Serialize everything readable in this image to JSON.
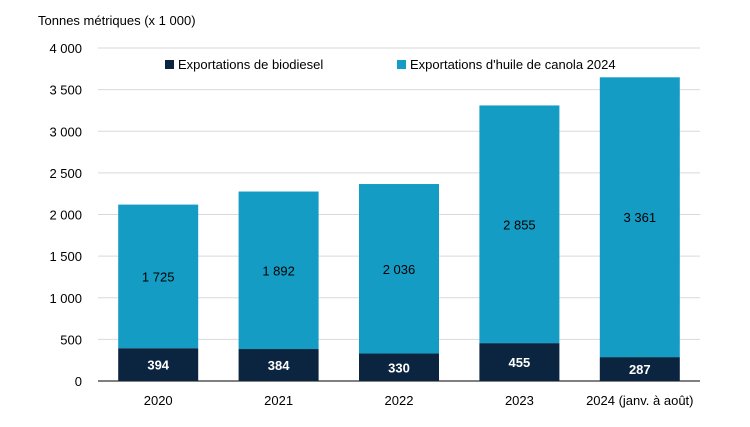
{
  "chart_data": {
    "type": "bar",
    "stacked": true,
    "ylabel": "Tonnes métriques (x 1 000)",
    "categories": [
      "2020",
      "2021",
      "2022",
      "2023",
      "2024 (janv. à août)"
    ],
    "ylim": [
      0,
      4000
    ],
    "yticks": [
      0,
      500,
      1000,
      1500,
      2000,
      2500,
      3000,
      3500,
      4000
    ],
    "ytick_labels": [
      "0",
      "500",
      "1 000",
      "1 500",
      "2 000",
      "2 500",
      "3 000",
      "3 500",
      "4 000"
    ],
    "grid": true,
    "legend_position": "top",
    "series": [
      {
        "name": "Exportations de biodiesel",
        "color": "#0b2440",
        "values": [
          394,
          384,
          330,
          455,
          287
        ],
        "labels": [
          "394",
          "384",
          "330",
          "455",
          "287"
        ]
      },
      {
        "name": "Exportations d'huile de canola 2024",
        "color": "#159cc4",
        "values": [
          1725,
          1892,
          2036,
          2855,
          3361
        ],
        "labels": [
          "1 725",
          "1 892",
          "2 036",
          "2 855",
          "3 361"
        ]
      }
    ]
  }
}
